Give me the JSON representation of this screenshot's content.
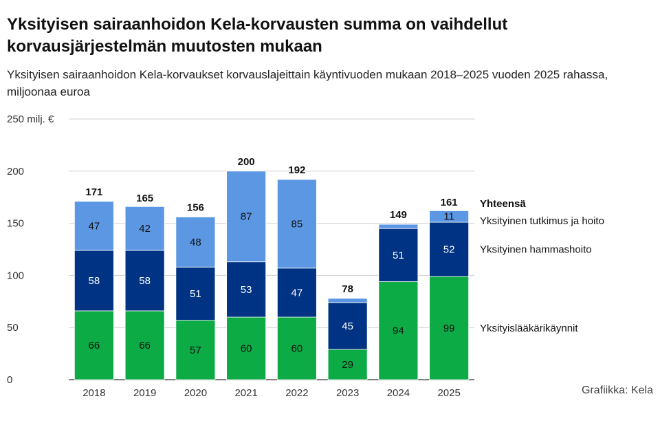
{
  "title": "Yksityisen sairaanhoidon Kela-korvausten summa on vaihdellut korvausjärjestelmän muutosten mukaan",
  "subtitle": "Yksityisen sairaanhoidon Kela-korvaukset korvauslajeittain käyntivuoden mukaan 2018–2025 vuoden 2025 rahassa, miljoonaa euroa",
  "credit": "Grafiikka: Kela",
  "chart_data": {
    "type": "bar",
    "stacked": true,
    "categories": [
      "2018",
      "2019",
      "2020",
      "2021",
      "2022",
      "2023",
      "2024",
      "2025"
    ],
    "series": [
      {
        "name": "Yksityislääkärikäynnit",
        "color": "#0cab45",
        "label_color": "#111111",
        "values": [
          66,
          66,
          57,
          60,
          60,
          29,
          94,
          99
        ]
      },
      {
        "name": "Yksityinen hammashoito",
        "color": "#003383",
        "label_color": "#ffffff",
        "values": [
          58,
          58,
          51,
          53,
          47,
          45,
          51,
          52
        ]
      },
      {
        "name": "Yksityinen tutkimus ja hoito",
        "color": "#5b97e3",
        "label_color": "#111111",
        "values": [
          47,
          42,
          48,
          87,
          85,
          4,
          4,
          11
        ]
      }
    ],
    "series_value_labels": [
      [
        "66",
        "66",
        "57",
        "60",
        "60",
        "29",
        "94",
        "99"
      ],
      [
        "58",
        "58",
        "51",
        "53",
        "47",
        "45",
        "51",
        "52"
      ],
      [
        "47",
        "42",
        "48",
        "87",
        "85",
        "",
        "",
        "11"
      ]
    ],
    "totals": [
      171,
      165,
      156,
      200,
      192,
      78,
      149,
      161
    ],
    "total_legend_label": "Yhteensä",
    "ylim": [
      0,
      250
    ],
    "yticks": [
      0,
      50,
      100,
      150,
      200,
      250
    ],
    "ytick_labels": [
      "0",
      "50",
      "100",
      "150",
      "200",
      "250 milj. €"
    ],
    "grid": true,
    "legend": "right, aligned to last bar segments"
  }
}
